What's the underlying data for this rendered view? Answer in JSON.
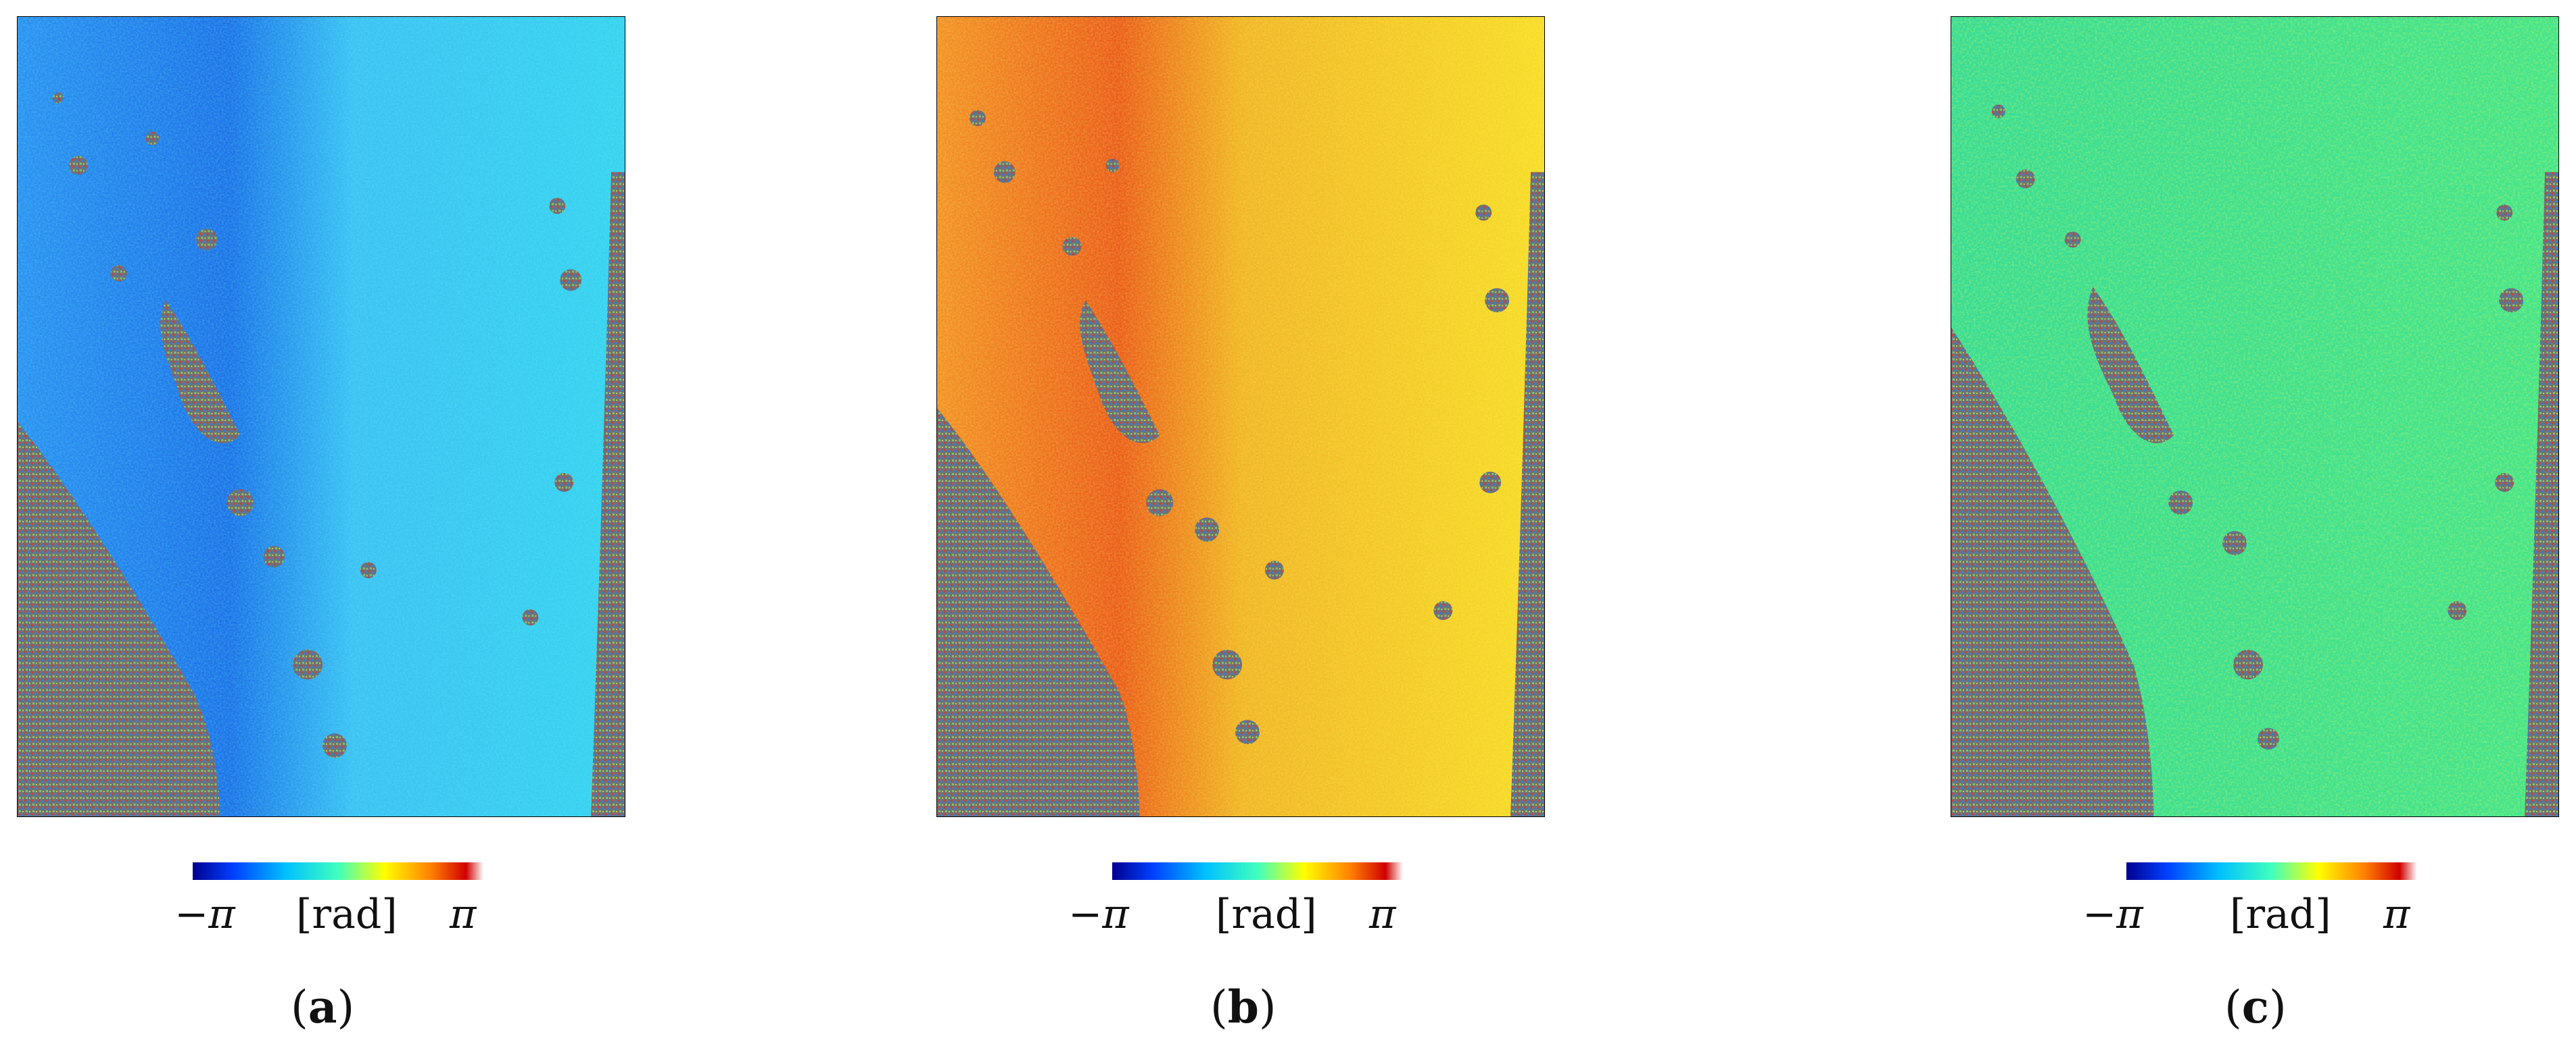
{
  "panels": [
    {
      "caption_open": "(",
      "caption_letter": "a",
      "caption_close": ")",
      "colorbar": {
        "min_label": "−π",
        "unit_label": "[rad]",
        "max_label": "π"
      },
      "base_color": "#39c6f0",
      "dark_color": "#1e6fe0"
    },
    {
      "caption_open": "(",
      "caption_letter": "b",
      "caption_close": ")",
      "colorbar": {
        "min_label": "−π",
        "unit_label": "[rad]",
        "max_label": "π"
      },
      "base_color": "#f5c52a",
      "dark_color": "#ea5a1e"
    },
    {
      "caption_open": "(",
      "caption_letter": "c",
      "caption_close": ")",
      "colorbar": {
        "min_label": "−π",
        "unit_label": "[rad]",
        "max_label": "π"
      },
      "base_color": "#3fe08f",
      "dark_color": "#36d69a"
    }
  ],
  "colorbar_colors": [
    "#00008f",
    "#0040ff",
    "#00c0ff",
    "#40ffbf",
    "#ffff00",
    "#ff8000",
    "#d00000",
    "#ffffff"
  ],
  "decorrelation_color": "#707878"
}
